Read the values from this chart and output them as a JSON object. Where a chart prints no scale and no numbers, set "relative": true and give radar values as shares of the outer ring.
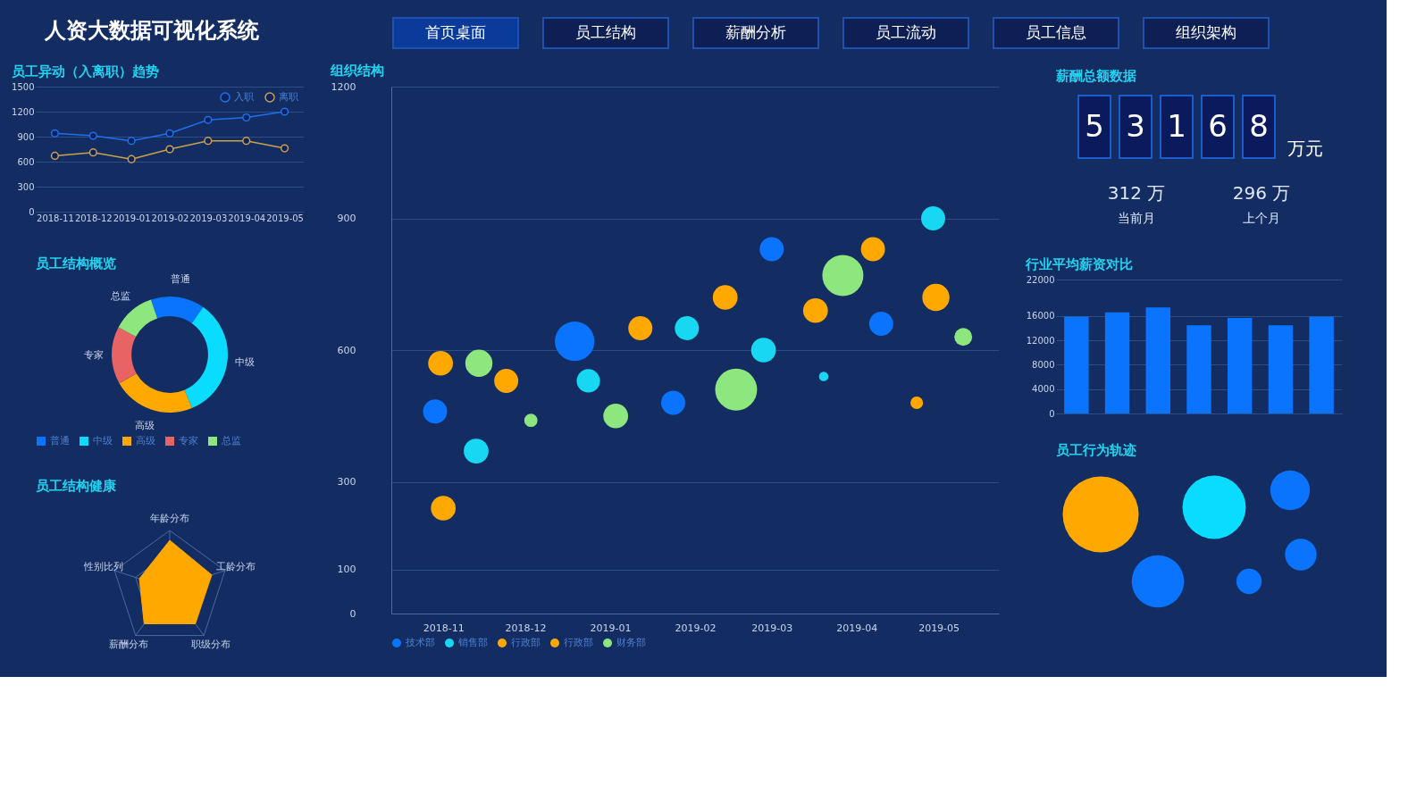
{
  "chart_data": [
    {
      "type": "other",
      "title": "人资大数据可视化系统",
      "annotations": [
        "首页桌面",
        "员工结构",
        "薪酬分析",
        "员工流动",
        "员工信息",
        "组织架构"
      ]
    },
    {
      "type": "line",
      "title": "员工异动（入离职）趋势",
      "categories": [
        "2018-11",
        "2018-12",
        "2019-01",
        "2019-02",
        "2019-03",
        "2019-04",
        "2019-05"
      ],
      "series": [
        {
          "name": "入职",
          "color": "#1f6fe8",
          "values": [
            940,
            910,
            850,
            940,
            1100,
            1130,
            1200
          ]
        },
        {
          "name": "离职",
          "color": "#c9a24a",
          "values": [
            670,
            710,
            630,
            750,
            850,
            850,
            760
          ]
        }
      ],
      "ylim": [
        0,
        1500
      ],
      "yticks": [
        0,
        300,
        600,
        900,
        1200,
        1500
      ],
      "grid": "y",
      "legend": "top right",
      "marker": "circle",
      "line_style": "solid"
    },
    {
      "type": "donut",
      "title": "员工结构概览",
      "categories": [
        "普通",
        "中级",
        "高级",
        "专家",
        "总监"
      ],
      "values": [
        15,
        34,
        23,
        16,
        12
      ],
      "colors": [
        "#0a74ff",
        "#0adcff",
        "#ffa800",
        "#e86464",
        "#8ee67f"
      ],
      "legend": "bottom"
    },
    {
      "type": "radar",
      "title": "员工结构健康",
      "categories": [
        "年龄分布",
        "工龄分布",
        "职级分布",
        "薪酬分布",
        "性别比列"
      ],
      "relative": true,
      "series": [
        {
          "color": "#ffa800",
          "values": [
            0.83,
            0.76,
            0.75,
            0.75,
            0.55
          ]
        }
      ],
      "grid": true
    },
    {
      "type": "bubble",
      "title": "组织结构",
      "xlim": [
        "2018-10-13",
        "2019-05-23"
      ],
      "xticks": [
        "2018-11",
        "2018-12",
        "2019-01",
        "2019-02",
        "2019-03",
        "2019-04",
        "2019-05"
      ],
      "ylim": [
        0,
        1200
      ],
      "yticks": [
        0,
        100,
        300,
        600,
        900,
        1200
      ],
      "grid": "y",
      "legend": "bottom",
      "series": [
        {
          "name": "技术部",
          "color": "#0a74ff",
          "x": [
            "2018-10-29",
            "2018-12-19",
            "2019-01-24",
            "2019-03-01",
            "2019-04-10"
          ],
          "values": [
            460,
            620,
            480,
            830,
            660
          ],
          "sizes": [
            0.33,
            0.89,
            0.33,
            0.33,
            0.33
          ]
        },
        {
          "name": "销售部",
          "color": "#17d7f2",
          "x": [
            "2018-11-13",
            "2018-12-24",
            "2019-01-29",
            "2019-02-26",
            "2019-03-20",
            "2019-04-29"
          ],
          "values": [
            370,
            530,
            650,
            600,
            540,
            900
          ],
          "sizes": [
            0.35,
            0.31,
            0.33,
            0.35,
            0.05,
            0.33
          ]
        },
        {
          "name": "行政部",
          "color": "#ffa800",
          "x": [
            "2018-10-31",
            "2018-11-01",
            "2018-11-24",
            "2019-01-12",
            "2019-02-12"
          ],
          "values": [
            570,
            240,
            530,
            650,
            720
          ],
          "sizes": [
            0.35,
            0.35,
            0.33,
            0.33,
            0.35
          ]
        },
        {
          "name": "行政部",
          "color": "#ffa800",
          "x": [
            "2019-03-17",
            "2019-04-07",
            "2019-04-23",
            "2019-04-30"
          ],
          "values": [
            690,
            830,
            480,
            720
          ],
          "sizes": [
            0.35,
            0.33,
            0.09,
            0.42
          ]
        },
        {
          "name": "财务部",
          "color": "#8ee67f",
          "x": [
            "2018-11-14",
            "2018-12-03",
            "2019-01-03",
            "2019-02-16",
            "2019-03-27",
            "2019-05-10"
          ],
          "values": [
            570,
            440,
            450,
            510,
            770,
            630
          ],
          "sizes": [
            0.42,
            0.1,
            0.35,
            1,
            0.96,
            0.18
          ]
        }
      ]
    },
    {
      "type": "other",
      "title": "薪酬总额数据",
      "annotations": [
        "5",
        "3",
        "1",
        "6",
        "8",
        "万元",
        "312 万",
        "当前月",
        "296 万",
        "上个月"
      ]
    },
    {
      "type": "bar",
      "title": "行业平均薪资对比",
      "categories": [
        null,
        null,
        null,
        null,
        null,
        null,
        null
      ],
      "values": [
        15900,
        16600,
        17400,
        14500,
        15700,
        14500,
        15900
      ],
      "color": "#0a74ff",
      "ylim": [
        0,
        22000
      ],
      "yticks": [
        0,
        4000,
        8000,
        12000,
        16000,
        22000
      ],
      "grid": "y"
    },
    {
      "type": "other",
      "title": "员工行为轨迹"
    }
  ]
}
